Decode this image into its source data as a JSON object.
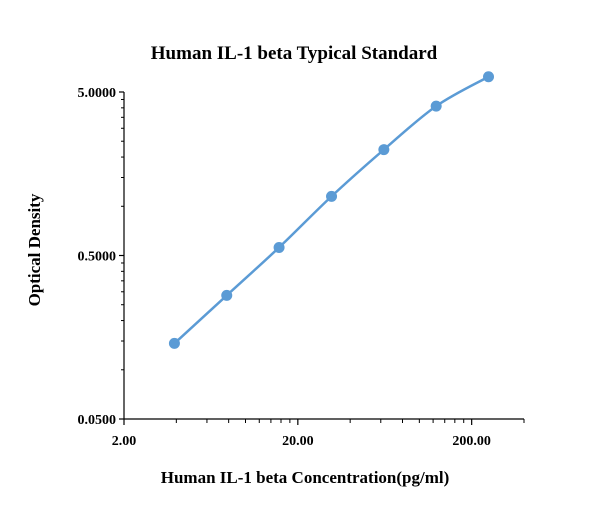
{
  "chart_data": {
    "type": "scatter",
    "title": "Human IL-1 beta Typical Standard",
    "xlabel": "Human IL-1 beta Concentration(pg/ml)",
    "ylabel": "Optical Density",
    "x_scale": "log",
    "y_scale": "log",
    "xlim": [
      2,
      400
    ],
    "ylim": [
      0.05,
      5
    ],
    "x_ticks": [
      2,
      20,
      200
    ],
    "x_tick_labels": [
      "2.00",
      "20.00",
      "200.00"
    ],
    "y_ticks": [
      0.05,
      0.5,
      5
    ],
    "y_tick_labels": [
      "0.0500",
      "0.5000",
      "5.0000"
    ],
    "grid": false,
    "legend": "none",
    "series": [
      {
        "x": [
          3.9,
          7.8,
          15.6,
          31.25,
          62.5,
          125,
          250
        ],
        "y": [
          0.145,
          0.285,
          0.56,
          1.15,
          2.22,
          4.1,
          6.2
        ],
        "color": "#5b9bd5",
        "line": "smooth",
        "marker": "circle"
      }
    ]
  }
}
